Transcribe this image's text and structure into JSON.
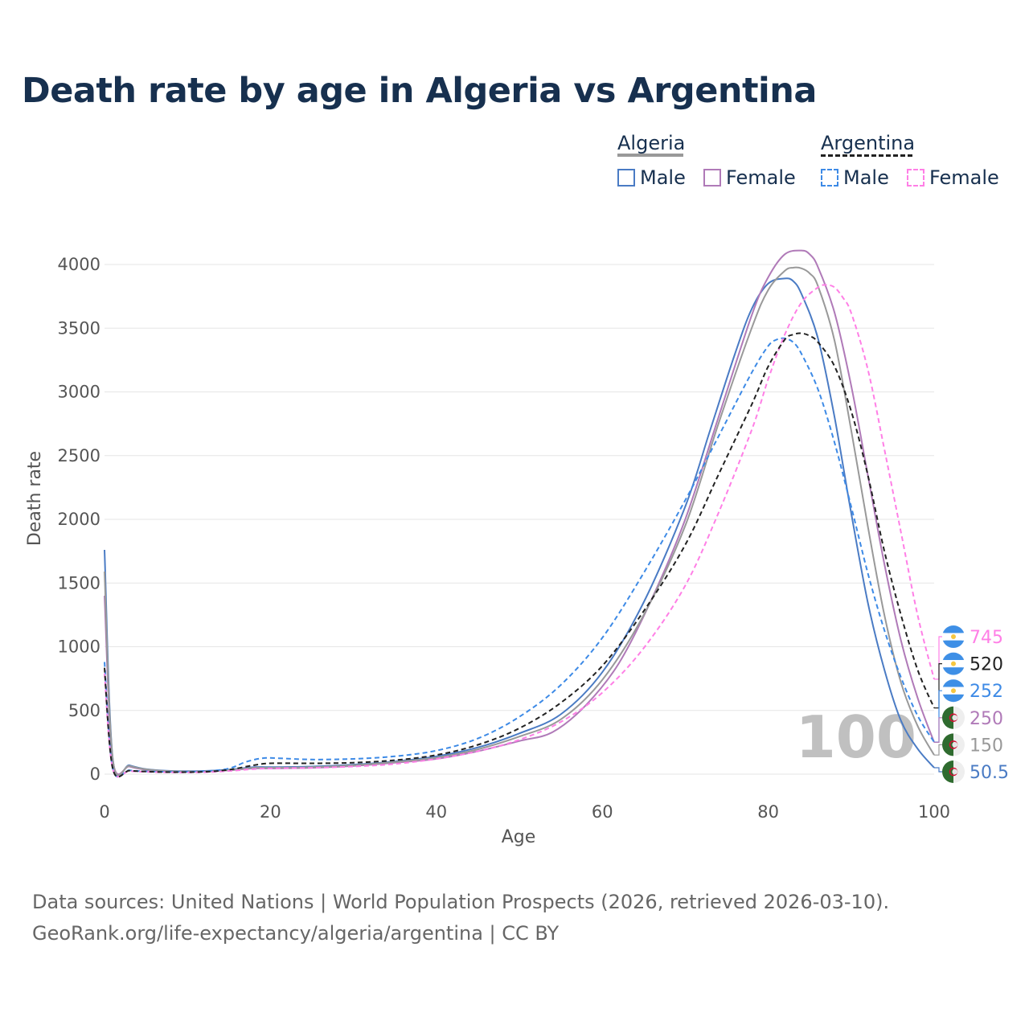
{
  "title": "Death rate by age in Algeria vs Argentina",
  "legend": {
    "groups": [
      {
        "name": "Algeria",
        "items": [
          "Male",
          "Female"
        ]
      },
      {
        "name": "Argentina",
        "items": [
          "Male",
          "Female"
        ]
      }
    ]
  },
  "colors": {
    "algeria_male": "#4a7bc4",
    "algeria_female": "#b07ab8",
    "algeria_both": "#999999",
    "argentina_male": "#3d8ae6",
    "argentina_female": "#ff7fe6",
    "argentina_both": "#222222"
  },
  "watermark_year": "100",
  "end_labels": [
    {
      "value": "745",
      "series": "argentina_female",
      "country": "argentina"
    },
    {
      "value": "520",
      "series": "argentina_both",
      "country": "argentina"
    },
    {
      "value": "252",
      "series": "argentina_male",
      "country": "argentina"
    },
    {
      "value": "250",
      "series": "algeria_female",
      "country": "algeria"
    },
    {
      "value": "150",
      "series": "algeria_both",
      "country": "algeria"
    },
    {
      "value": "50.5",
      "series": "algeria_male",
      "country": "algeria"
    }
  ],
  "source": {
    "line1": "Data sources: United Nations | World Population Prospects (2026, retrieved 2026-03-10).",
    "line2": "GeoRank.org/life-expectancy/algeria/argentina | CC BY"
  },
  "chart_data": {
    "type": "line",
    "title": "Death rate by age in Algeria vs Argentina",
    "xlabel": "Age",
    "ylabel": "Death rate",
    "xlim": [
      0,
      100
    ],
    "ylim": [
      0,
      4200
    ],
    "xticks": [
      0,
      20,
      40,
      60,
      80,
      100
    ],
    "yticks": [
      0,
      500,
      1000,
      1500,
      2000,
      2500,
      3000,
      3500,
      4000
    ],
    "grid": true,
    "series": [
      {
        "key": "algeria_male",
        "name": "Algeria Male",
        "dash": "solid",
        "x": [
          0,
          1,
          3,
          5,
          8,
          12,
          15,
          18,
          20,
          25,
          30,
          35,
          40,
          45,
          50,
          55,
          60,
          65,
          70,
          73,
          76,
          78,
          80,
          82,
          83,
          84,
          86,
          88,
          90,
          92,
          94,
          96,
          98,
          100
        ],
        "y": [
          1760,
          120,
          70,
          40,
          25,
          25,
          35,
          55,
          55,
          60,
          75,
          100,
          140,
          210,
          320,
          470,
          800,
          1350,
          2100,
          2700,
          3300,
          3650,
          3850,
          3890,
          3870,
          3770,
          3420,
          2800,
          2050,
          1350,
          820,
          420,
          200,
          50.5
        ]
      },
      {
        "key": "algeria_female",
        "name": "Algeria Female",
        "dash": "solid",
        "x": [
          0,
          1,
          3,
          5,
          8,
          12,
          15,
          18,
          20,
          25,
          30,
          35,
          40,
          45,
          50,
          54,
          58,
          62,
          66,
          70,
          74,
          78,
          80,
          82,
          84,
          85,
          86,
          88,
          90,
          92,
          94,
          96,
          98,
          100
        ],
        "y": [
          1400,
          110,
          60,
          35,
          22,
          20,
          30,
          45,
          45,
          50,
          65,
          90,
          120,
          180,
          260,
          330,
          540,
          870,
          1380,
          2000,
          2800,
          3600,
          3900,
          4080,
          4110,
          4080,
          3980,
          3620,
          3050,
          2350,
          1650,
          1050,
          600,
          250
        ]
      },
      {
        "key": "algeria_both",
        "name": "Algeria Both",
        "dash": "solid",
        "x": [
          0,
          1,
          3,
          5,
          8,
          12,
          15,
          18,
          20,
          25,
          30,
          35,
          40,
          45,
          50,
          55,
          60,
          65,
          70,
          74,
          78,
          80,
          82,
          83,
          84,
          85,
          86,
          88,
          90,
          92,
          94,
          96,
          98,
          100
        ],
        "y": [
          1590,
          115,
          65,
          38,
          23,
          22,
          32,
          50,
          50,
          55,
          70,
          95,
          130,
          195,
          295,
          430,
          740,
          1250,
          1950,
          2750,
          3500,
          3800,
          3950,
          3975,
          3970,
          3930,
          3830,
          3400,
          2700,
          1950,
          1250,
          720,
          380,
          150
        ]
      },
      {
        "key": "argentina_male",
        "name": "Argentina Male",
        "dash": "dashed",
        "x": [
          0,
          1,
          3,
          5,
          8,
          12,
          15,
          17,
          19,
          21,
          25,
          30,
          35,
          40,
          45,
          50,
          55,
          60,
          65,
          70,
          74,
          78,
          80,
          81,
          82,
          83,
          84,
          86,
          88,
          90,
          92,
          94,
          96,
          98,
          100
        ],
        "y": [
          880,
          45,
          30,
          22,
          18,
          22,
          45,
          95,
          125,
          125,
          115,
          120,
          140,
          185,
          280,
          450,
          700,
          1070,
          1580,
          2150,
          2650,
          3150,
          3360,
          3410,
          3420,
          3390,
          3300,
          3020,
          2600,
          2100,
          1580,
          1130,
          760,
          460,
          252
        ]
      },
      {
        "key": "argentina_female",
        "name": "Argentina Female",
        "dash": "dashed",
        "x": [
          0,
          1,
          3,
          5,
          8,
          12,
          15,
          18,
          20,
          25,
          30,
          35,
          40,
          45,
          50,
          55,
          60,
          65,
          70,
          74,
          78,
          80,
          82,
          84,
          86,
          87,
          88,
          89,
          90,
          92,
          94,
          96,
          98,
          100
        ],
        "y": [
          790,
          40,
          25,
          18,
          14,
          15,
          25,
          40,
          45,
          50,
          60,
          80,
          120,
          180,
          270,
          410,
          640,
          990,
          1480,
          2050,
          2700,
          3100,
          3450,
          3700,
          3820,
          3840,
          3820,
          3740,
          3620,
          3180,
          2550,
          1900,
          1250,
          745
        ]
      },
      {
        "key": "argentina_both",
        "name": "Argentina Both",
        "dash": "dashed",
        "x": [
          0,
          1,
          3,
          5,
          8,
          12,
          15,
          18,
          20,
          25,
          30,
          35,
          40,
          45,
          50,
          55,
          60,
          65,
          70,
          74,
          78,
          80,
          82,
          83,
          84,
          85,
          86,
          88,
          90,
          92,
          94,
          96,
          98,
          100
        ],
        "y": [
          835,
          42,
          28,
          20,
          16,
          18,
          35,
          70,
          85,
          85,
          90,
          110,
          150,
          230,
          360,
          560,
          850,
          1280,
          1800,
          2350,
          2900,
          3200,
          3410,
          3450,
          3460,
          3440,
          3390,
          3200,
          2850,
          2350,
          1750,
          1250,
          820,
          520
        ]
      }
    ]
  }
}
